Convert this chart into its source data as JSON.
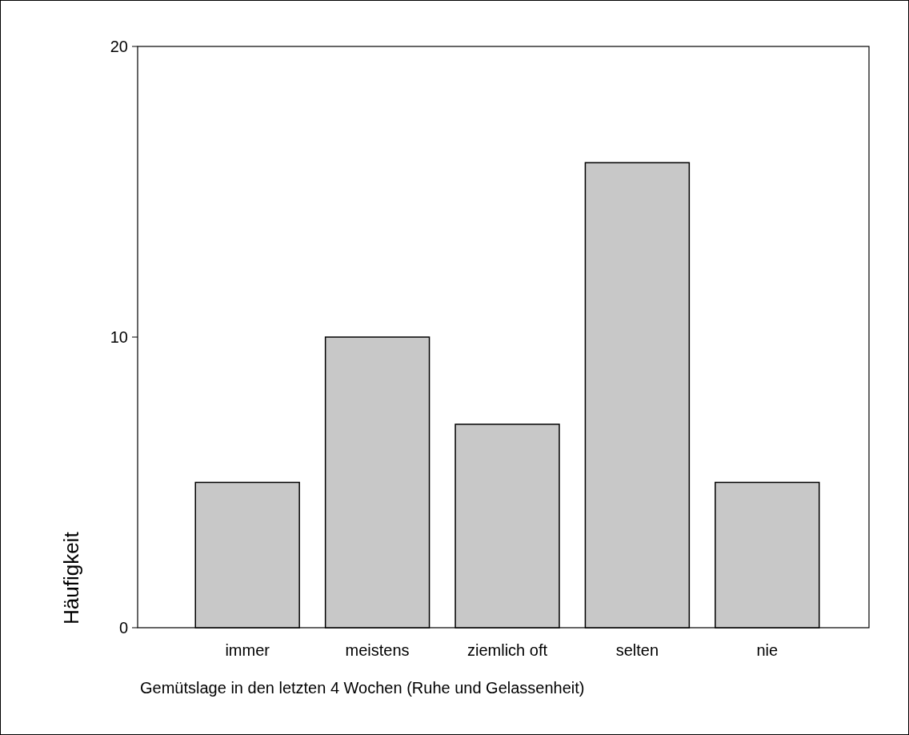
{
  "chart_data": {
    "type": "bar",
    "xlabel": "Gemütslage in den letzten 4 Wochen (Ruhe und Gelassenheit)",
    "ylabel": "Häufigkeit",
    "categories": [
      "immer",
      "meistens",
      "ziemlich oft",
      "selten",
      "nie"
    ],
    "values": [
      5,
      10,
      7,
      16,
      5
    ],
    "color": "#c8c8c8",
    "ylim": [
      0,
      20
    ],
    "yticks": [
      0,
      10,
      20
    ],
    "grid": false
  }
}
